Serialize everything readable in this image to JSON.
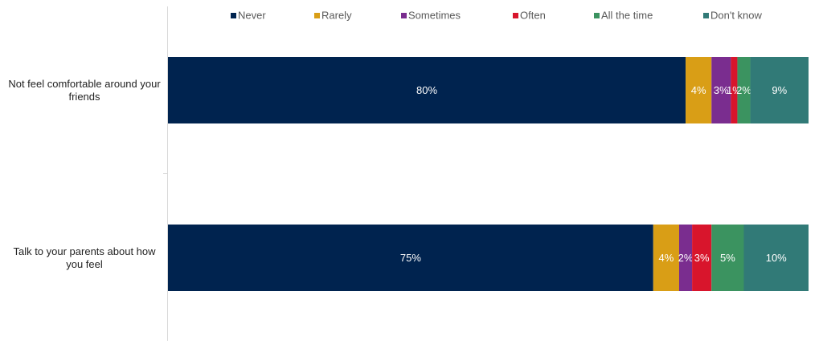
{
  "chart_data": {
    "type": "stacked-bar-horizontal",
    "categories": [
      "Not feel comfortable around your friends",
      "Talk to your parents about how you feel"
    ],
    "xlim": [
      0,
      99
    ],
    "legend": "top",
    "series": [
      {
        "name": "Never",
        "color": "#00234f",
        "values": [
          80,
          75
        ],
        "value_labels": [
          "80%",
          "75%"
        ]
      },
      {
        "name": "Rarely",
        "color": "#d99e16",
        "values": [
          4,
          4
        ],
        "value_labels": [
          "4%",
          "4%"
        ]
      },
      {
        "name": "Sometimes",
        "color": "#7a2d8f",
        "values": [
          3,
          2
        ],
        "value_labels": [
          "3%",
          "2%"
        ]
      },
      {
        "name": "Often",
        "color": "#d8152c",
        "values": [
          1,
          3
        ],
        "value_labels": [
          "1%",
          "3%"
        ]
      },
      {
        "name": "All the time",
        "color": "#3b9360",
        "values": [
          2,
          5
        ],
        "value_labels": [
          "2%",
          "5%"
        ]
      },
      {
        "name": "Don't know",
        "color": "#317a77",
        "values": [
          9,
          10
        ],
        "value_labels": [
          "9%",
          "10%"
        ]
      }
    ]
  }
}
